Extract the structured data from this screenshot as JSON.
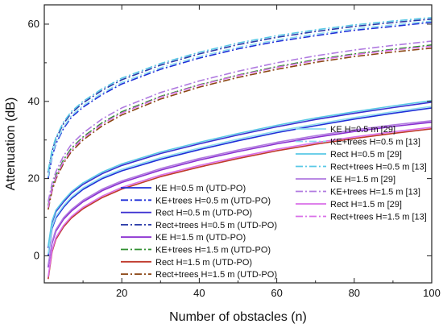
{
  "chart_data": {
    "type": "line",
    "xlabel": "Number of obstacles (n)",
    "ylabel": "Attenuation (dB)",
    "xlim": [
      0,
      100
    ],
    "ylim": [
      -7,
      65
    ],
    "xticks": [
      20,
      40,
      60,
      80,
      100
    ],
    "yticks": [
      0,
      20,
      40,
      60
    ],
    "x": [
      1,
      2,
      3,
      5,
      7,
      10,
      15,
      20,
      30,
      40,
      50,
      60,
      70,
      80,
      90,
      100
    ],
    "legend_left_placement": "bottom-center",
    "legend_right_placement": "middle-right",
    "series": [
      {
        "name": "KE H=0.5 m (UTD-PO)",
        "color": "#1f2fd8",
        "style": "solid",
        "values": [
          0.0,
          7.0,
          9.8,
          12.6,
          14.8,
          17.2,
          20.0,
          22.0,
          25.0,
          27.5,
          29.8,
          31.9,
          33.7,
          35.4,
          36.9,
          38.3
        ]
      },
      {
        "name": "KE+trees H=0.5 m (UTD-PO)",
        "color": "#1f2fd8",
        "style": "dashdot",
        "values": [
          20.0,
          25.6,
          29.0,
          33.0,
          35.9,
          38.5,
          41.8,
          44.5,
          48.3,
          51.2,
          53.6,
          55.5,
          57.0,
          58.4,
          59.4,
          60.5
        ]
      },
      {
        "name": "Rect H=0.5 m (UTD-PO)",
        "color": "#3a2fd0",
        "style": "solid",
        "values": [
          2.0,
          8.6,
          11.4,
          14.0,
          16.2,
          18.5,
          21.3,
          23.4,
          26.5,
          29.0,
          31.3,
          33.4,
          35.3,
          36.9,
          38.4,
          39.8
        ]
      },
      {
        "name": "Rect+trees H=0.5 m (UTD-PO)",
        "color": "#2a3aa8",
        "style": "dashdot",
        "values": [
          21.5,
          27.0,
          30.3,
          34.3,
          37.0,
          39.6,
          42.9,
          45.6,
          49.4,
          52.3,
          54.7,
          56.6,
          58.1,
          59.4,
          60.4,
          61.3
        ]
      },
      {
        "name": "KE H=1.5 m (UTD-PO)",
        "color": "#8a2fd0",
        "style": "solid",
        "values": [
          -3.0,
          3.2,
          6.4,
          9.5,
          11.6,
          14.0,
          16.9,
          19.0,
          22.2,
          24.8,
          27.0,
          29.0,
          30.7,
          32.2,
          33.5,
          34.6
        ]
      },
      {
        "name": "KE+trees H=1.5 m (UTD-PO)",
        "color": "#2f8f2f",
        "style": "dashdot",
        "values": [
          13.0,
          17.8,
          20.8,
          24.9,
          27.9,
          30.8,
          34.5,
          37.3,
          41.3,
          44.3,
          46.8,
          49.0,
          50.8,
          52.3,
          53.5,
          54.6
        ]
      },
      {
        "name": "Rect H=1.5 m (UTD-PO)",
        "color": "#c0392b",
        "style": "solid",
        "values": [
          -6.0,
          1.0,
          4.3,
          7.5,
          9.8,
          12.2,
          15.1,
          17.3,
          20.5,
          23.0,
          25.2,
          27.2,
          28.9,
          30.4,
          31.7,
          32.9
        ]
      },
      {
        "name": "Rect+trees H=1.5 m (UTD-PO)",
        "color": "#8b4513",
        "style": "dashdot",
        "values": [
          12.0,
          16.8,
          19.9,
          24.0,
          27.0,
          30.0,
          33.7,
          36.5,
          40.6,
          43.7,
          46.2,
          48.3,
          50.1,
          51.6,
          52.8,
          53.8
        ]
      },
      {
        "name": "KE H=0.5 m [29]",
        "color": "#8fdcf0",
        "style": "solid",
        "values": [
          0.5,
          7.5,
          10.2,
          13.0,
          15.2,
          17.6,
          20.4,
          22.4,
          25.4,
          27.9,
          30.2,
          32.3,
          34.1,
          35.8,
          37.3,
          38.7
        ]
      },
      {
        "name": "KE+trees H=0.5 m [13]",
        "color": "#8fdcf0",
        "style": "dashdot",
        "values": [
          20.5,
          26.0,
          29.4,
          33.4,
          36.3,
          38.9,
          42.2,
          44.9,
          48.7,
          51.6,
          54.0,
          55.9,
          57.4,
          58.8,
          59.8,
          60.8
        ]
      },
      {
        "name": "Rect H=0.5 m [29]",
        "color": "#59c8e6",
        "style": "solid",
        "values": [
          2.5,
          9.0,
          11.8,
          14.4,
          16.6,
          18.9,
          21.7,
          23.8,
          26.9,
          29.4,
          31.7,
          33.8,
          35.7,
          37.3,
          38.8,
          40.2
        ]
      },
      {
        "name": "Rect+trees H=0.5 m [13]",
        "color": "#59c8e6",
        "style": "dashdot",
        "values": [
          22.0,
          27.4,
          30.7,
          34.7,
          37.4,
          40.0,
          43.3,
          46.0,
          49.8,
          52.7,
          55.1,
          57.0,
          58.5,
          59.8,
          60.8,
          61.7
        ]
      },
      {
        "name": "KE H=1.5 m [29]",
        "color": "#b07ae0",
        "style": "solid",
        "values": [
          -2.5,
          3.6,
          6.8,
          9.9,
          12.0,
          14.4,
          17.3,
          19.4,
          22.6,
          25.2,
          27.4,
          29.4,
          31.1,
          32.6,
          33.9,
          35.0
        ]
      },
      {
        "name": "KE+trees H=1.5 m  [13]",
        "color": "#b07ae0",
        "style": "dashdot",
        "values": [
          14.0,
          18.8,
          21.8,
          25.9,
          28.9,
          31.8,
          35.5,
          38.3,
          42.3,
          45.3,
          47.8,
          50.0,
          51.8,
          53.3,
          54.5,
          55.6
        ]
      },
      {
        "name": "Rect H=1.5 m [29]",
        "color": "#d96fe8",
        "style": "solid",
        "values": [
          -5.5,
          1.4,
          4.7,
          7.9,
          10.2,
          12.6,
          15.5,
          17.7,
          20.9,
          23.4,
          25.6,
          27.6,
          29.3,
          30.8,
          32.1,
          33.3
        ]
      },
      {
        "name": "Rect+trees H=1.5 m [13]",
        "color": "#d96fe8",
        "style": "dashdot",
        "values": [
          12.5,
          17.3,
          20.4,
          24.5,
          27.5,
          30.5,
          34.2,
          37.0,
          41.1,
          44.2,
          46.7,
          48.8,
          50.6,
          52.1,
          53.3,
          54.3
        ]
      }
    ]
  }
}
